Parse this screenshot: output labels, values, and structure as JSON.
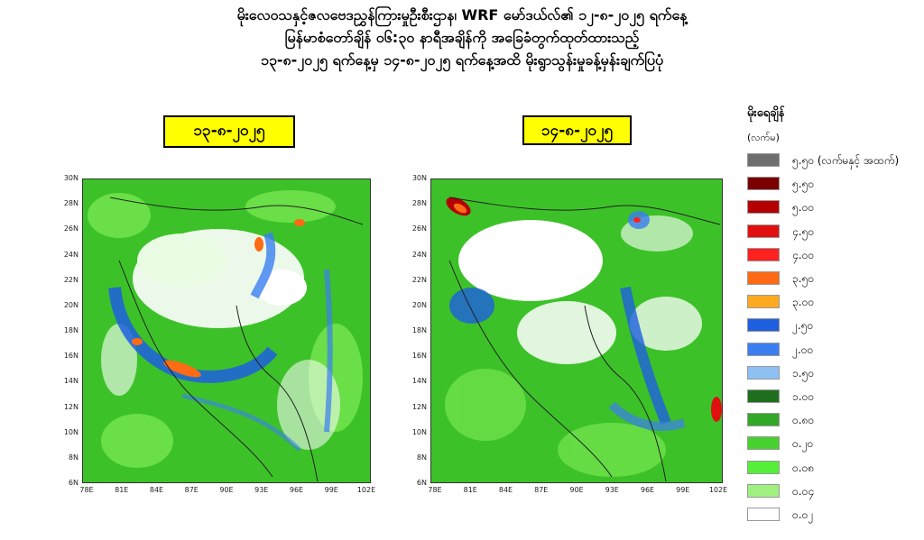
{
  "title": {
    "line1": "မိုးလေဝသနှင့်ဇလဗေဒညွှန်ကြားမှုဦးစီးဌာန၊ WRF မော်ဒယ်လ်၏ ၁၂-၈-၂၀၂၅ ရက်နေ့",
    "line2": "မြန်မာစံတော်ချိန် ၀၆:၃၀ နာရီအချိန်ကို အခြေခံတွက်ထုတ်ထားသည့်",
    "line3": "၁၃-၈-၂၀၂၅ ရက်နေ့မှ ၁၄-၈-၂၀၂၅ ရက်နေ့အထိ မိုးရွာသွန်းမှုခန့်မှန်းချက်ပြပုံ"
  },
  "maps": [
    {
      "date": "၁၃-၈-၂၀၂၅"
    },
    {
      "date": "၁၄-၈-၂၀၂၅"
    }
  ],
  "axis": {
    "lat_labels": [
      "30N",
      "28N",
      "26N",
      "24N",
      "22N",
      "20N",
      "18N",
      "16N",
      "14N",
      "12N",
      "10N",
      "8N",
      "6N"
    ],
    "lon_labels": [
      "78E",
      "81E",
      "84E",
      "87E",
      "90E",
      "93E",
      "96E",
      "99E",
      "102E"
    ]
  },
  "legend": {
    "title": "မိုးရေချိန်",
    "unit": "(လက်မ)",
    "items": [
      {
        "label": "၅.၅၀ (လက်မနှင့် အထက်)",
        "color": "#6e6e6e"
      },
      {
        "label": "၅.၅၀",
        "color": "#7a0000"
      },
      {
        "label": "၅.၀၀",
        "color": "#b40000"
      },
      {
        "label": "၄.၅၀",
        "color": "#e01010"
      },
      {
        "label": "၄.၀၀",
        "color": "#ff2020"
      },
      {
        "label": "၃.၅၀",
        "color": "#ff6a14"
      },
      {
        "label": "၃.၀၀",
        "color": "#ffaa20"
      },
      {
        "label": "၂.၅၀",
        "color": "#1e5fe0"
      },
      {
        "label": "၂.၀၀",
        "color": "#3a7ef0"
      },
      {
        "label": "၁.၅၀",
        "color": "#8ec0f4"
      },
      {
        "label": "၁.၀၀",
        "color": "#1e6e1e"
      },
      {
        "label": "၀.၈၀",
        "color": "#34a828"
      },
      {
        "label": "၀.၂၀",
        "color": "#48d030"
      },
      {
        "label": "၀.၀၈",
        "color": "#55ee38"
      },
      {
        "label": "၀.၀၄",
        "color": "#a0f080"
      },
      {
        "label": "၀.၀၂",
        "color": "#ffffff"
      }
    ]
  }
}
